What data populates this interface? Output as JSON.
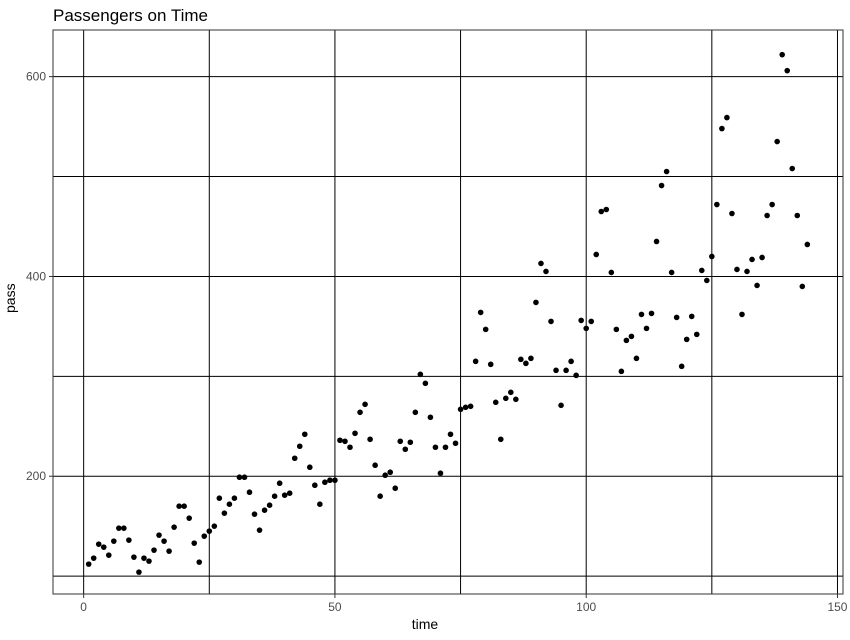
{
  "chart_data": {
    "type": "scatter",
    "title": "Passengers on Time",
    "xlabel": "time",
    "ylabel": "pass",
    "xlim": [
      -6.1,
      151.1
    ],
    "ylim": [
      82.1,
      646.7
    ],
    "x_ticks": [
      0,
      50,
      100,
      150
    ],
    "y_ticks": [
      200,
      400,
      600
    ],
    "y_gridlines": [
      100,
      200,
      300,
      400,
      500,
      600
    ],
    "grid": true,
    "series": [
      {
        "color": "#000000",
        "points": [
          [
            1,
            112
          ],
          [
            2,
            118
          ],
          [
            3,
            132
          ],
          [
            4,
            129
          ],
          [
            5,
            121
          ],
          [
            6,
            135
          ],
          [
            7,
            148
          ],
          [
            8,
            148
          ],
          [
            9,
            136
          ],
          [
            10,
            119
          ],
          [
            11,
            104
          ],
          [
            12,
            118
          ],
          [
            13,
            115
          ],
          [
            14,
            126
          ],
          [
            15,
            141
          ],
          [
            16,
            135
          ],
          [
            17,
            125
          ],
          [
            18,
            149
          ],
          [
            19,
            170
          ],
          [
            20,
            170
          ],
          [
            21,
            158
          ],
          [
            22,
            133
          ],
          [
            23,
            114
          ],
          [
            24,
            140
          ],
          [
            25,
            145
          ],
          [
            26,
            150
          ],
          [
            27,
            178
          ],
          [
            28,
            163
          ],
          [
            29,
            172
          ],
          [
            30,
            178
          ],
          [
            31,
            199
          ],
          [
            32,
            199
          ],
          [
            33,
            184
          ],
          [
            34,
            162
          ],
          [
            35,
            146
          ],
          [
            36,
            166
          ],
          [
            37,
            171
          ],
          [
            38,
            180
          ],
          [
            39,
            193
          ],
          [
            40,
            181
          ],
          [
            41,
            183
          ],
          [
            42,
            218
          ],
          [
            43,
            230
          ],
          [
            44,
            242
          ],
          [
            45,
            209
          ],
          [
            46,
            191
          ],
          [
            47,
            172
          ],
          [
            48,
            194
          ],
          [
            49,
            196
          ],
          [
            50,
            196
          ],
          [
            51,
            236
          ],
          [
            52,
            235
          ],
          [
            53,
            229
          ],
          [
            54,
            243
          ],
          [
            55,
            264
          ],
          [
            56,
            272
          ],
          [
            57,
            237
          ],
          [
            58,
            211
          ],
          [
            59,
            180
          ],
          [
            60,
            201
          ],
          [
            61,
            204
          ],
          [
            62,
            188
          ],
          [
            63,
            235
          ],
          [
            64,
            227
          ],
          [
            65,
            234
          ],
          [
            66,
            264
          ],
          [
            67,
            302
          ],
          [
            68,
            293
          ],
          [
            69,
            259
          ],
          [
            70,
            229
          ],
          [
            71,
            203
          ],
          [
            72,
            229
          ],
          [
            73,
            242
          ],
          [
            74,
            233
          ],
          [
            75,
            267
          ],
          [
            76,
            269
          ],
          [
            77,
            270
          ],
          [
            78,
            315
          ],
          [
            79,
            364
          ],
          [
            80,
            347
          ],
          [
            81,
            312
          ],
          [
            82,
            274
          ],
          [
            83,
            237
          ],
          [
            84,
            278
          ],
          [
            85,
            284
          ],
          [
            86,
            277
          ],
          [
            87,
            317
          ],
          [
            88,
            313
          ],
          [
            89,
            318
          ],
          [
            90,
            374
          ],
          [
            91,
            413
          ],
          [
            92,
            405
          ],
          [
            93,
            355
          ],
          [
            94,
            306
          ],
          [
            95,
            271
          ],
          [
            96,
            306
          ],
          [
            97,
            315
          ],
          [
            98,
            301
          ],
          [
            99,
            356
          ],
          [
            100,
            348
          ],
          [
            101,
            355
          ],
          [
            102,
            422
          ],
          [
            103,
            465
          ],
          [
            104,
            467
          ],
          [
            105,
            404
          ],
          [
            106,
            347
          ],
          [
            107,
            305
          ],
          [
            108,
            336
          ],
          [
            109,
            340
          ],
          [
            110,
            318
          ],
          [
            111,
            362
          ],
          [
            112,
            348
          ],
          [
            113,
            363
          ],
          [
            114,
            435
          ],
          [
            115,
            491
          ],
          [
            116,
            505
          ],
          [
            117,
            404
          ],
          [
            118,
            359
          ],
          [
            119,
            310
          ],
          [
            120,
            337
          ],
          [
            121,
            360
          ],
          [
            122,
            342
          ],
          [
            123,
            406
          ],
          [
            124,
            396
          ],
          [
            125,
            420
          ],
          [
            126,
            472
          ],
          [
            127,
            548
          ],
          [
            128,
            559
          ],
          [
            129,
            463
          ],
          [
            130,
            407
          ],
          [
            131,
            362
          ],
          [
            132,
            405
          ],
          [
            133,
            417
          ],
          [
            134,
            391
          ],
          [
            135,
            419
          ],
          [
            136,
            461
          ],
          [
            137,
            472
          ],
          [
            138,
            535
          ],
          [
            139,
            622
          ],
          [
            140,
            606
          ],
          [
            141,
            508
          ],
          [
            142,
            461
          ],
          [
            143,
            390
          ],
          [
            144,
            432
          ]
        ]
      }
    ]
  }
}
